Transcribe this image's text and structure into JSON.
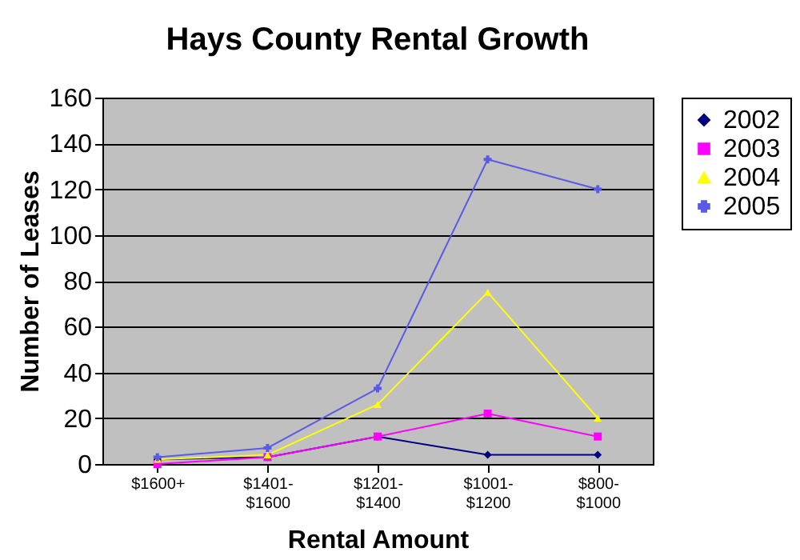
{
  "chart_data": {
    "type": "line",
    "title": "Hays County Rental Growth",
    "xlabel": "Rental Amount",
    "ylabel": "Number of Leases",
    "categories": [
      "$1600+",
      "$1401-$1600",
      "$1201-$1400",
      "$1001-$1200",
      "$800-$1000"
    ],
    "series": [
      {
        "name": "2002",
        "color": "#000080",
        "marker": "diamond",
        "values": [
          2,
          3,
          12,
          4,
          4
        ]
      },
      {
        "name": "2003",
        "color": "#ff00ff",
        "marker": "square",
        "values": [
          0,
          3,
          12,
          22,
          12
        ]
      },
      {
        "name": "2004",
        "color": "#ffff00",
        "marker": "triangle",
        "values": [
          2,
          4,
          26,
          75,
          20
        ]
      },
      {
        "name": "2005",
        "color": "#5a5ae6",
        "marker": "cross",
        "values": [
          3,
          7,
          33,
          133,
          120
        ]
      }
    ],
    "ylim": [
      0,
      160
    ],
    "yticks": [
      0,
      20,
      40,
      60,
      80,
      100,
      120,
      140,
      160
    ],
    "grid": "y",
    "legend": "right",
    "line_style": "solid"
  }
}
